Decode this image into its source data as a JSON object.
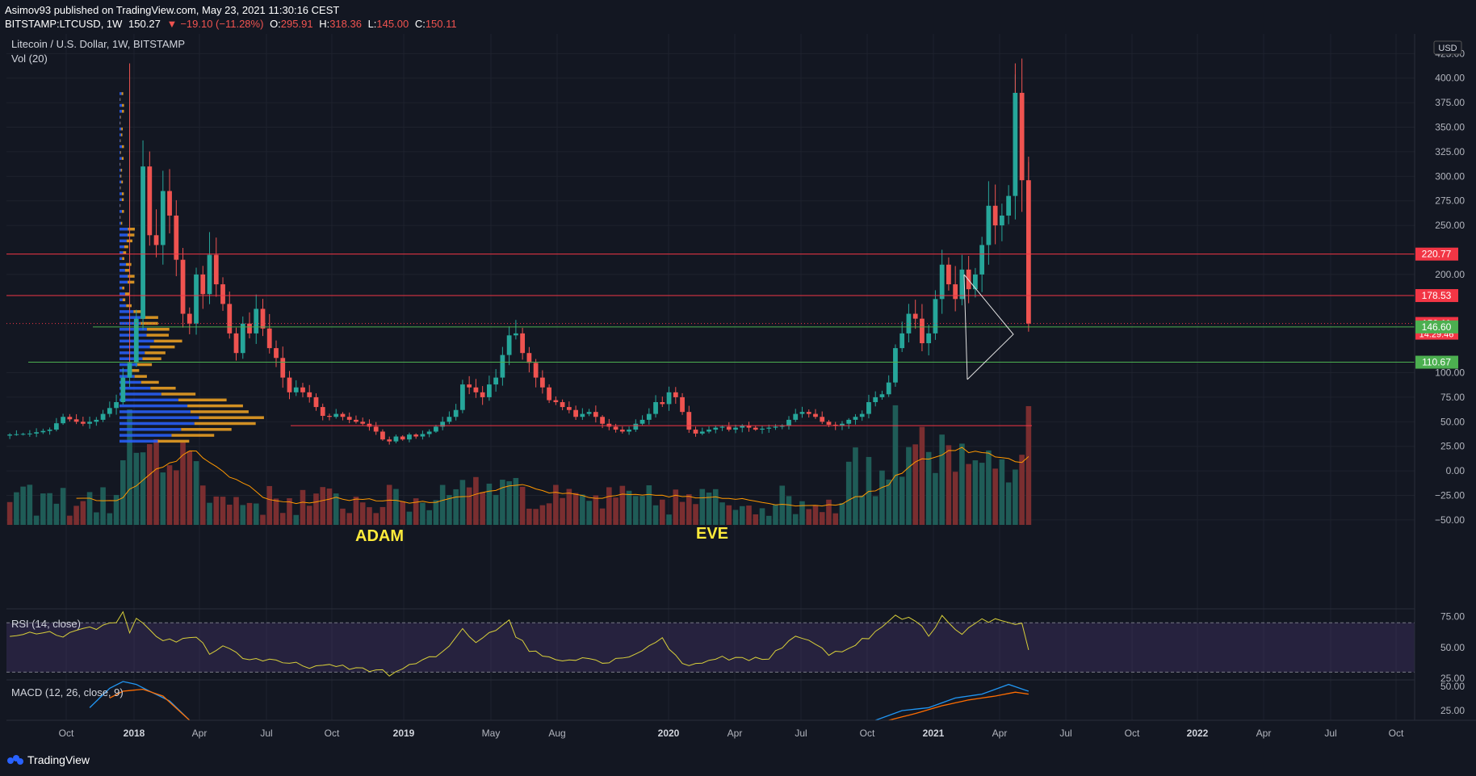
{
  "header": {
    "publisher_line": "Asimov93 published on TradingView.com, May 23, 2021 11:30:16 CEST",
    "symbol": "BITSTAMP:LTCUSD, 1W",
    "last": "150.27",
    "change": "−19.10 (−11.28%)",
    "o_label": "O:",
    "o": "295.91",
    "h_label": "H:",
    "h": "318.36",
    "l_label": "L:",
    "l": "145.00",
    "c_label": "C:",
    "c": "150.11"
  },
  "legend": {
    "title": "Litecoin / U.S. Dollar, 1W, BITSTAMP",
    "vol": "Vol (20)",
    "rsi": "RSI (14, close)",
    "macd": "MACD (12, 26, close, 9)",
    "currency": "USD"
  },
  "footer": {
    "brand": "TradingView"
  },
  "colors": {
    "bg": "#131722",
    "up": "#26a69a",
    "down": "#ef5350",
    "red_line": "#f23645",
    "green_line": "#4caf50",
    "rsi": "#d8cf3a",
    "rsi_band": "#7e57c2",
    "macd": "#2196f3",
    "signal": "#ff6d00",
    "vp_up": "#2962ff",
    "vp_down": "#f5a623",
    "annotation": "#ffeb3b"
  },
  "chart_data": {
    "type": "candlestick",
    "title": "Litecoin / U.S. Dollar, 1W, BITSTAMP",
    "interval": "1W",
    "price_axis": {
      "ticks": [
        425,
        400,
        375,
        350,
        325,
        300,
        275,
        250,
        200,
        100,
        75,
        50,
        25,
        0,
        -25,
        -50
      ],
      "range": [
        -55,
        445
      ]
    },
    "time_axis": [
      "Oct",
      "2018",
      "Apr",
      "Jul",
      "Oct",
      "2019",
      "May",
      "Aug",
      "2020",
      "Apr",
      "Jul",
      "Oct",
      "2021",
      "Apr",
      "Jul",
      "Oct",
      "2022",
      "Apr",
      "Jul",
      "Oct"
    ],
    "level_labels": [
      {
        "value": 220.77,
        "label": "220.77",
        "color": "#f23645"
      },
      {
        "value": 178.53,
        "label": "178.53",
        "color": "#f23645"
      },
      {
        "value": 150.11,
        "label": "150.11",
        "sub": "14:29:46",
        "color": "#f23645"
      },
      {
        "value": 146.6,
        "label": "146.60",
        "color": "#4caf50"
      },
      {
        "value": 110.67,
        "label": "110.67",
        "color": "#4caf50"
      }
    ],
    "annotations": [
      {
        "text": "ADAM",
        "near": "2018-12"
      },
      {
        "text": "EVE",
        "near": "2020-03"
      }
    ],
    "horizontal_lines": [
      {
        "value": 220.77,
        "color": "#f23645"
      },
      {
        "value": 178.53,
        "color": "#f23645"
      },
      {
        "value": 146.6,
        "color": "#4caf50"
      },
      {
        "value": 110.67,
        "color": "#4caf50"
      },
      {
        "value": 46,
        "color": "#f23645"
      }
    ],
    "price_waypoints": [
      [
        0,
        37
      ],
      [
        3,
        38
      ],
      [
        6,
        42
      ],
      [
        8,
        55
      ],
      [
        10,
        50
      ],
      [
        11,
        48
      ],
      [
        13,
        52
      ],
      [
        14,
        58
      ],
      [
        16,
        70
      ],
      [
        17,
        95
      ],
      [
        18,
        110
      ],
      [
        19,
        155
      ],
      [
        20,
        310
      ],
      [
        21,
        240
      ],
      [
        22,
        230
      ],
      [
        23,
        285
      ],
      [
        24,
        260
      ],
      [
        25,
        215
      ],
      [
        26,
        160
      ],
      [
        27,
        150
      ],
      [
        28,
        200
      ],
      [
        29,
        180
      ],
      [
        30,
        220
      ],
      [
        31,
        190
      ],
      [
        32,
        170
      ],
      [
        33,
        140
      ],
      [
        34,
        120
      ],
      [
        35,
        150
      ],
      [
        36,
        140
      ],
      [
        37,
        165
      ],
      [
        38,
        145
      ],
      [
        39,
        125
      ],
      [
        40,
        115
      ],
      [
        41,
        95
      ],
      [
        42,
        80
      ],
      [
        43,
        85
      ],
      [
        44,
        80
      ],
      [
        45,
        75
      ],
      [
        46,
        65
      ],
      [
        47,
        56
      ],
      [
        48,
        55
      ],
      [
        49,
        58
      ],
      [
        50,
        55
      ],
      [
        51,
        52
      ],
      [
        52,
        50
      ],
      [
        53,
        48
      ],
      [
        54,
        45
      ],
      [
        55,
        40
      ],
      [
        56,
        32
      ],
      [
        57,
        30
      ],
      [
        58,
        35
      ],
      [
        59,
        32
      ],
      [
        60,
        37
      ],
      [
        61,
        35
      ],
      [
        63,
        40
      ],
      [
        64,
        45
      ],
      [
        65,
        50
      ],
      [
        66,
        55
      ],
      [
        67,
        62
      ],
      [
        68,
        88
      ],
      [
        69,
        85
      ],
      [
        70,
        80
      ],
      [
        71,
        75
      ],
      [
        72,
        88
      ],
      [
        73,
        95
      ],
      [
        74,
        118
      ],
      [
        75,
        138
      ],
      [
        76,
        140
      ],
      [
        77,
        120
      ],
      [
        78,
        110
      ],
      [
        79,
        95
      ],
      [
        80,
        85
      ],
      [
        81,
        72
      ],
      [
        82,
        70
      ],
      [
        83,
        65
      ],
      [
        84,
        62
      ],
      [
        85,
        55
      ],
      [
        86,
        58
      ],
      [
        87,
        60
      ],
      [
        88,
        55
      ],
      [
        89,
        48
      ],
      [
        90,
        45
      ],
      [
        91,
        42
      ],
      [
        92,
        40
      ],
      [
        93,
        42
      ],
      [
        94,
        48
      ],
      [
        95,
        52
      ],
      [
        96,
        58
      ],
      [
        97,
        70
      ],
      [
        98,
        68
      ],
      [
        99,
        80
      ],
      [
        100,
        75
      ],
      [
        101,
        60
      ],
      [
        102,
        42
      ],
      [
        103,
        38
      ],
      [
        104,
        40
      ],
      [
        105,
        42
      ],
      [
        106,
        44
      ],
      [
        107,
        45
      ],
      [
        108,
        42
      ],
      [
        109,
        44
      ],
      [
        110,
        46
      ],
      [
        111,
        44
      ],
      [
        112,
        42
      ],
      [
        113,
        43
      ],
      [
        114,
        44
      ],
      [
        115,
        45
      ],
      [
        116,
        46
      ],
      [
        117,
        52
      ],
      [
        118,
        58
      ],
      [
        119,
        60
      ],
      [
        120,
        58
      ],
      [
        121,
        55
      ],
      [
        122,
        50
      ],
      [
        123,
        47
      ],
      [
        124,
        46
      ],
      [
        125,
        48
      ],
      [
        126,
        52
      ],
      [
        127,
        55
      ],
      [
        128,
        58
      ],
      [
        129,
        70
      ],
      [
        130,
        75
      ],
      [
        131,
        78
      ],
      [
        132,
        90
      ],
      [
        133,
        125
      ],
      [
        134,
        140
      ],
      [
        135,
        160
      ],
      [
        136,
        155
      ],
      [
        137,
        130
      ],
      [
        138,
        140
      ],
      [
        139,
        175
      ],
      [
        140,
        210
      ],
      [
        141,
        190
      ],
      [
        142,
        175
      ],
      [
        143,
        205
      ],
      [
        144,
        185
      ],
      [
        145,
        200
      ],
      [
        146,
        230
      ],
      [
        147,
        270
      ],
      [
        148,
        250
      ],
      [
        149,
        260
      ],
      [
        150,
        280
      ],
      [
        151,
        385
      ],
      [
        152,
        296
      ],
      [
        153,
        150
      ]
    ],
    "rsi": {
      "range": [
        25,
        80
      ],
      "bands": [
        30,
        70
      ],
      "ticks": [
        75,
        50,
        25
      ],
      "waypoints": [
        [
          0,
          58
        ],
        [
          4,
          62
        ],
        [
          8,
          60
        ],
        [
          12,
          65
        ],
        [
          16,
          70
        ],
        [
          17,
          78
        ],
        [
          18,
          60
        ],
        [
          19,
          72
        ],
        [
          20,
          68
        ],
        [
          22,
          58
        ],
        [
          25,
          55
        ],
        [
          28,
          60
        ],
        [
          30,
          45
        ],
        [
          32,
          52
        ],
        [
          35,
          42
        ],
        [
          40,
          38
        ],
        [
          45,
          35
        ],
        [
          50,
          34
        ],
        [
          55,
          32
        ],
        [
          57,
          28
        ],
        [
          60,
          35
        ],
        [
          65,
          45
        ],
        [
          68,
          65
        ],
        [
          70,
          55
        ],
        [
          72,
          62
        ],
        [
          75,
          72
        ],
        [
          76,
          60
        ],
        [
          78,
          48
        ],
        [
          82,
          40
        ],
        [
          86,
          42
        ],
        [
          90,
          38
        ],
        [
          95,
          48
        ],
        [
          98,
          58
        ],
        [
          100,
          42
        ],
        [
          102,
          35
        ],
        [
          106,
          42
        ],
        [
          110,
          40
        ],
        [
          114,
          42
        ],
        [
          118,
          60
        ],
        [
          120,
          55
        ],
        [
          123,
          45
        ],
        [
          126,
          50
        ],
        [
          130,
          62
        ],
        [
          133,
          75
        ],
        [
          136,
          72
        ],
        [
          138,
          60
        ],
        [
          140,
          75
        ],
        [
          143,
          62
        ],
        [
          146,
          72
        ],
        [
          150,
          72
        ],
        [
          152,
          68
        ],
        [
          153,
          48
        ]
      ]
    },
    "macd": {
      "ticks": [
        50,
        25
      ],
      "range": [
        15,
        55
      ],
      "macd_waypoints": [
        [
          12,
          28
        ],
        [
          15,
          48
        ],
        [
          17,
          55
        ],
        [
          19,
          52
        ],
        [
          21,
          45
        ],
        [
          24,
          35
        ],
        [
          27,
          15
        ]
      ],
      "signal_waypoints": [
        [
          15,
          38
        ],
        [
          17,
          45
        ],
        [
          20,
          47
        ],
        [
          23,
          40
        ],
        [
          27,
          15
        ]
      ],
      "macd2_waypoints": [
        [
          130,
          15
        ],
        [
          134,
          25
        ],
        [
          138,
          28
        ],
        [
          142,
          38
        ],
        [
          146,
          42
        ],
        [
          150,
          52
        ],
        [
          153,
          45
        ]
      ],
      "signal2_waypoints": [
        [
          132,
          15
        ],
        [
          136,
          22
        ],
        [
          140,
          30
        ],
        [
          144,
          36
        ],
        [
          148,
          40
        ],
        [
          151,
          44
        ],
        [
          153,
          42
        ]
      ]
    }
  }
}
